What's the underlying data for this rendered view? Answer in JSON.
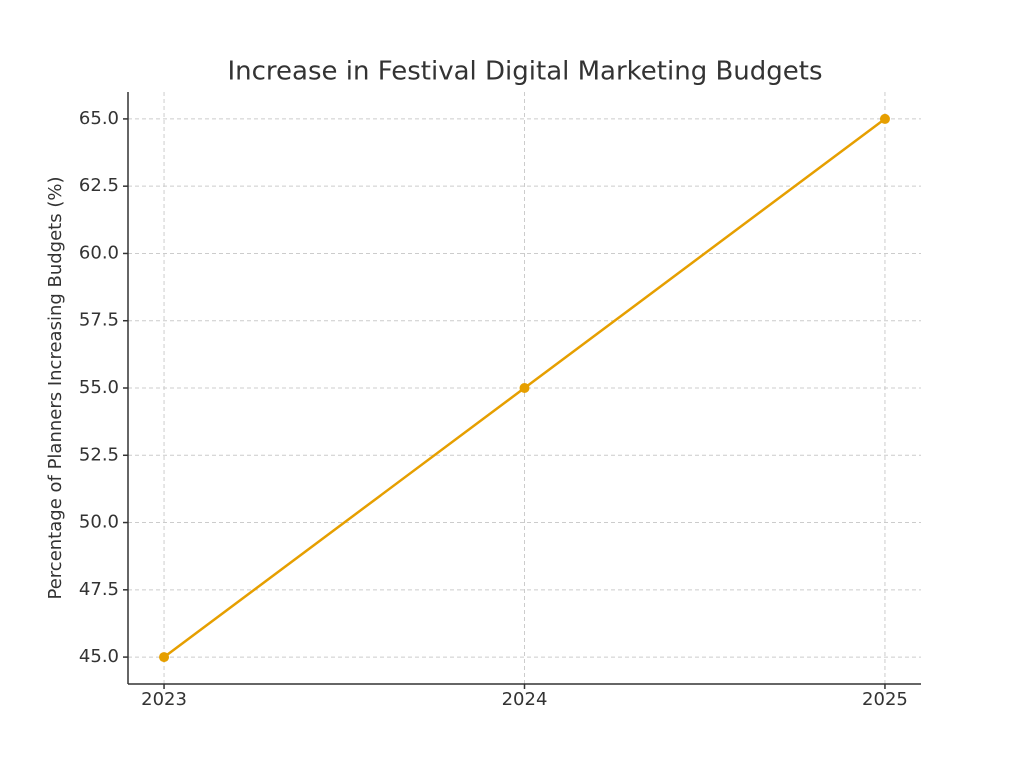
{
  "chart_data": {
    "type": "line",
    "title": "Increase in Festival Digital Marketing Budgets",
    "y_label": "Percentage of Planners Increasing Budgets (%)",
    "x": [
      2023,
      2024,
      2025
    ],
    "series": [
      {
        "color": "#e69f00",
        "values": [
          45,
          55,
          65
        ]
      }
    ],
    "xlim": [
      2022.9,
      2025.1
    ],
    "xticks": [
      2023,
      2024,
      2025
    ],
    "ylim": [
      44,
      66
    ],
    "yticks": [
      {
        "value": 45,
        "label": "45.0"
      },
      47.5,
      {
        "value": 50,
        "label": "50.0"
      },
      52.5,
      {
        "value": 55,
        "label": "55.0"
      },
      57.5,
      {
        "value": 60,
        "label": "60.0"
      },
      62.5,
      {
        "value": 65,
        "label": "65.0"
      }
    ],
    "grid": true
  }
}
